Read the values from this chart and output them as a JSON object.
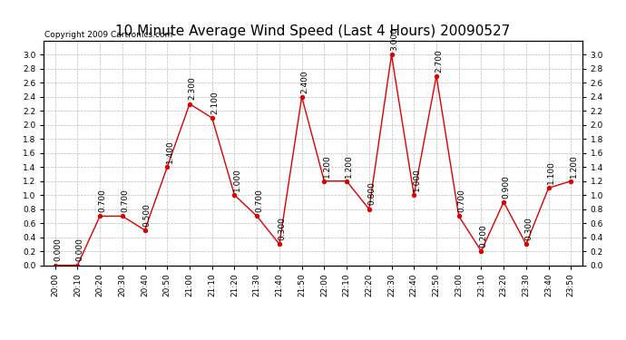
{
  "title": "10 Minute Average Wind Speed (Last 4 Hours) 20090527",
  "copyright": "Copyright 2009 Cartronics.com",
  "x_labels": [
    "20:00",
    "20:10",
    "20:20",
    "20:30",
    "20:40",
    "20:50",
    "21:00",
    "21:10",
    "21:20",
    "21:30",
    "21:40",
    "21:50",
    "22:00",
    "22:10",
    "22:20",
    "22:30",
    "22:40",
    "22:50",
    "23:00",
    "23:10",
    "23:20",
    "23:30",
    "23:40",
    "23:50"
  ],
  "y_values": [
    0.0,
    0.0,
    0.7,
    0.7,
    0.5,
    1.4,
    2.3,
    2.1,
    1.0,
    0.7,
    0.3,
    2.4,
    1.2,
    1.2,
    0.8,
    3.0,
    1.0,
    2.7,
    0.7,
    0.2,
    0.9,
    0.3,
    1.1,
    1.2
  ],
  "line_color": "#dd0000",
  "marker_color": "#dd0000",
  "background_color": "#ffffff",
  "grid_color": "#bbbbbb",
  "ylim": [
    0.0,
    3.2
  ],
  "yticks": [
    0.0,
    0.2,
    0.4,
    0.6,
    0.8,
    1.0,
    1.2,
    1.4,
    1.6,
    1.8,
    2.0,
    2.2,
    2.4,
    2.6,
    2.8,
    3.0
  ],
  "title_fontsize": 11,
  "label_fontsize": 6.5,
  "annotation_fontsize": 6.5,
  "copyright_fontsize": 6.5
}
